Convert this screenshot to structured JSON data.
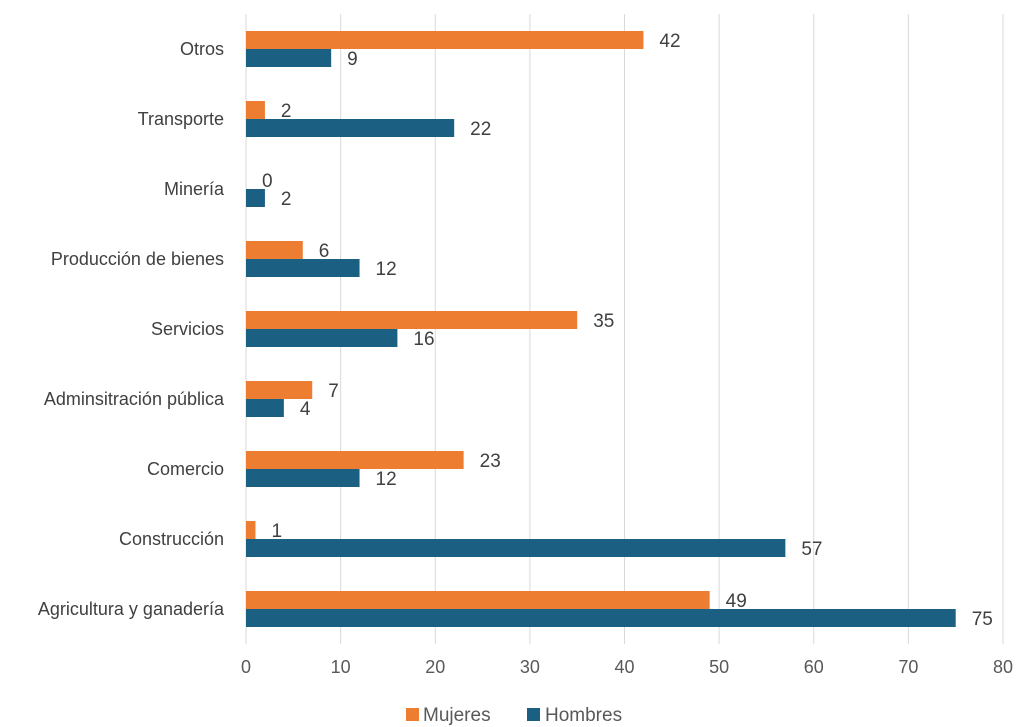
{
  "colors": {
    "Mujeres": "#ED7D31",
    "Hombres": "#1B5F82",
    "grid": "#D9D9D9"
  },
  "chart_data": {
    "type": "bar",
    "orientation": "horizontal",
    "title": "",
    "xlabel": "",
    "ylabel": "",
    "categories": [
      "Otros",
      "Transporte",
      "Minería",
      "Producción de bienes",
      "Servicios",
      "Adminsitración pública",
      "Comercio",
      "Construcción",
      "Agricultura y ganadería"
    ],
    "series": [
      {
        "name": "Mujeres",
        "values": [
          42,
          2,
          0,
          6,
          35,
          7,
          23,
          1,
          49
        ]
      },
      {
        "name": "Hombres",
        "values": [
          9,
          22,
          2,
          12,
          16,
          4,
          12,
          57,
          75
        ]
      }
    ],
    "xlim": [
      0,
      80
    ],
    "xticks": [
      "0",
      "10",
      "20",
      "30",
      "40",
      "50",
      "60",
      "70",
      "80"
    ],
    "grid": "vertical",
    "legend": "bottom-center",
    "data_labels": true
  }
}
